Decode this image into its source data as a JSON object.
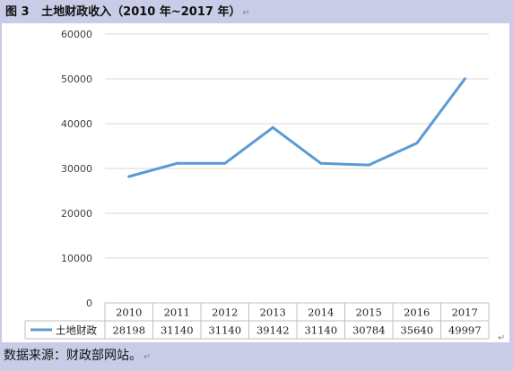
{
  "caption": {
    "figure_label": "图 3",
    "title": "土地财政收入（2010 年~2017 年）",
    "paragraph_mark": "↵"
  },
  "source": {
    "text": "数据来源：财政部网站。",
    "paragraph_mark": "↵"
  },
  "colors": {
    "background": "#c8cce6",
    "line": "#5b9bd5",
    "grid": "#d9d9d9",
    "table_border": "#bfbfbf"
  },
  "chart_data": {
    "type": "line",
    "title": "",
    "xlabel": "",
    "ylabel": "",
    "ylim": [
      0,
      60000
    ],
    "y_ticks": [
      "0",
      "10000",
      "20000",
      "30000",
      "40000",
      "50000",
      "60000"
    ],
    "grid": true,
    "legend_position": "data-table",
    "categories": [
      "2010",
      "2011",
      "2012",
      "2013",
      "2014",
      "2015",
      "2016",
      "2017"
    ],
    "series": [
      {
        "name": "土地财政",
        "values": [
          28198,
          31140,
          31140,
          39142,
          31140,
          30784,
          35640,
          49997
        ],
        "value_labels": [
          "28198",
          "31140",
          "31140",
          "39142",
          "31140",
          "30784",
          "35640",
          "49997"
        ]
      }
    ]
  }
}
